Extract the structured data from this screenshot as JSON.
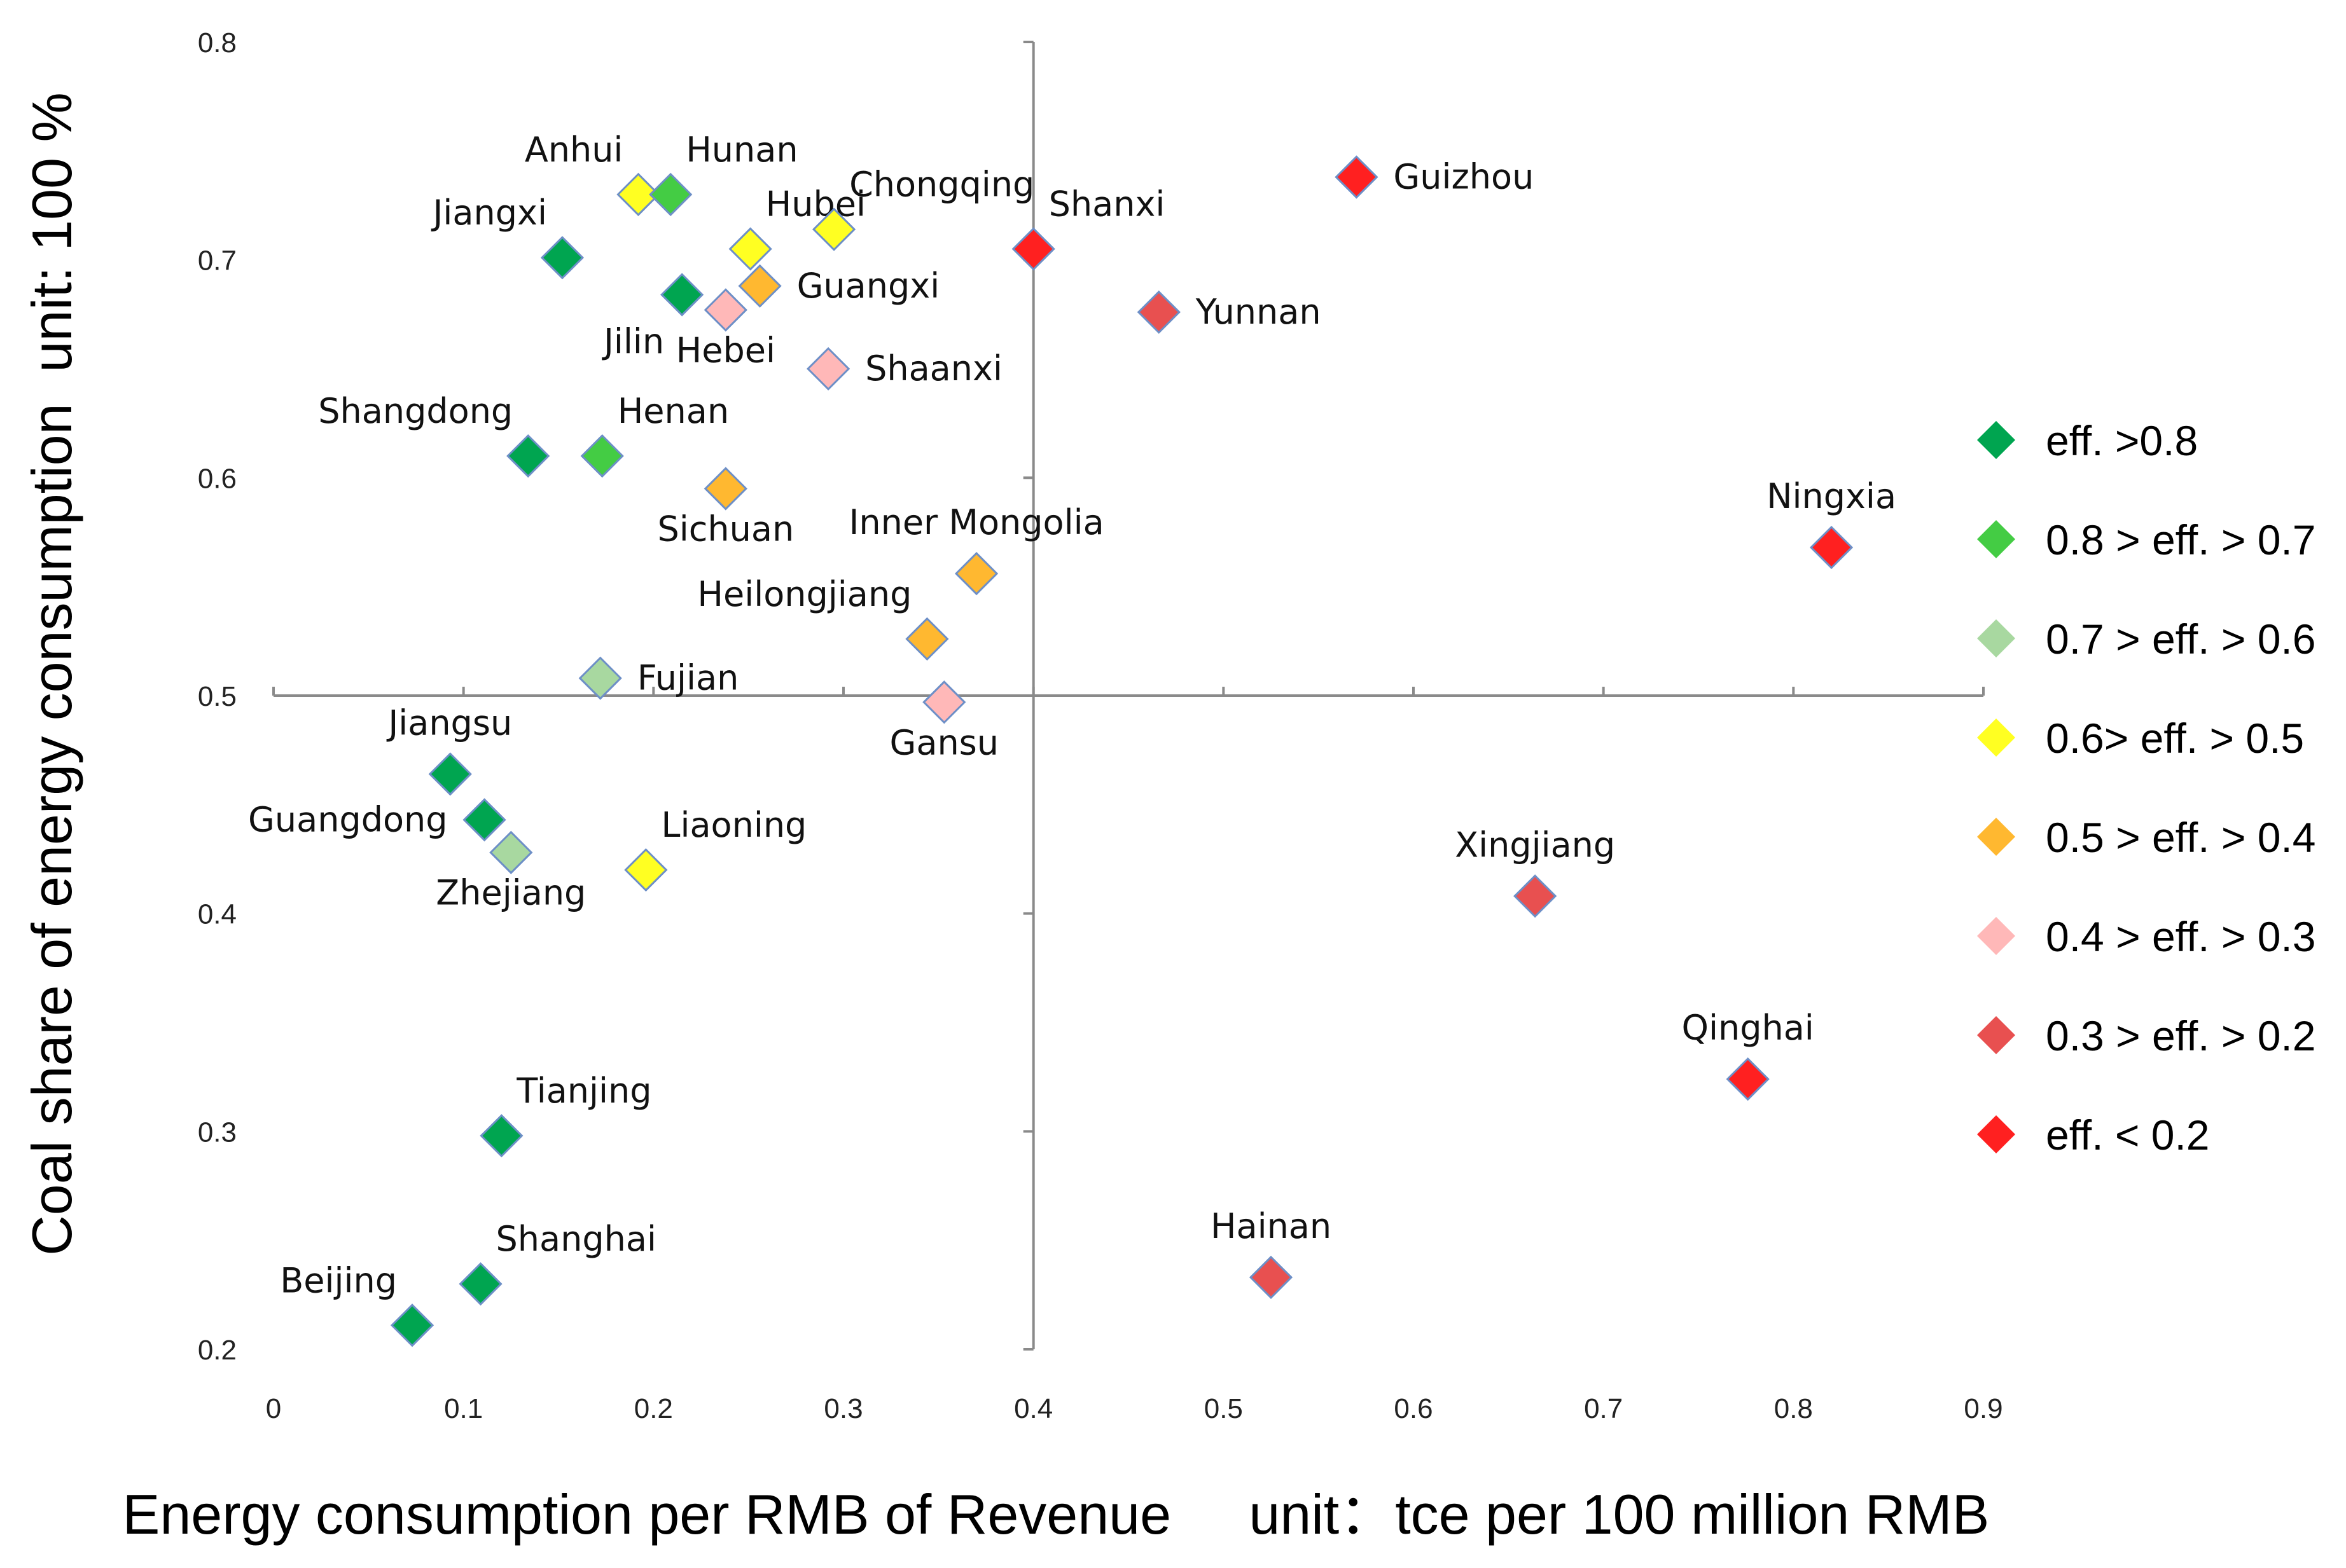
{
  "chart_data": {
    "type": "scatter",
    "xlabel": "Energy consumption per RMB of Revenue     unit：tce per 100 million RMB",
    "ylabel": "Coal share of energy consumption  unit: 100 %",
    "xlim": [
      0,
      0.9
    ],
    "ylim": [
      0.2,
      0.8
    ],
    "quadrant_center": {
      "x": 0.4,
      "y": 0.5
    },
    "x_ticks": [
      "0",
      "0.1",
      "0.2",
      "0.3",
      "0.4",
      "0.5",
      "0.6",
      "0.7",
      "0.8",
      "0.9"
    ],
    "y_ticks": [
      "0.2",
      "0.3",
      "0.4",
      "0.5",
      "0.6",
      "0.7",
      "0.8"
    ],
    "categories": [
      {
        "id": "c1",
        "label": "eff. >0.8",
        "color": "#00a550"
      },
      {
        "id": "c2",
        "label": "0.8 > eff. > 0.7",
        "color": "#44cc44"
      },
      {
        "id": "c3",
        "label": "0.7 > eff. > 0.6",
        "color": "#a8d8a0"
      },
      {
        "id": "c4",
        "label": "0.6> eff. > 0.5",
        "color": "#ffff22"
      },
      {
        "id": "c5",
        "label": "0.5 > eff. > 0.4",
        "color": "#ffb830"
      },
      {
        "id": "c6",
        "label": "0.4 > eff. > 0.3",
        "color": "#ffb8b8"
      },
      {
        "id": "c7",
        "label": "0.3 > eff. > 0.2",
        "color": "#e85050"
      },
      {
        "id": "c8",
        "label": "eff. < 0.2",
        "color": "#ff2020"
      }
    ],
    "points": [
      {
        "name": "Anhui",
        "x": 0.192,
        "y": 0.73,
        "cat": "c4",
        "lp": "above-left"
      },
      {
        "name": "Hunan",
        "x": 0.209,
        "y": 0.73,
        "cat": "c2",
        "lp": "above-right"
      },
      {
        "name": "Jiangxi",
        "x": 0.152,
        "y": 0.701,
        "cat": "c1",
        "lp": "above-left"
      },
      {
        "name": "Hubei",
        "x": 0.251,
        "y": 0.705,
        "cat": "c4",
        "lp": "above-right"
      },
      {
        "name": "Chongqing",
        "x": 0.295,
        "y": 0.714,
        "cat": "c4",
        "lp": "above-right"
      },
      {
        "name": "Shanxi",
        "x": 0.4,
        "y": 0.705,
        "cat": "c8",
        "lp": "above-right"
      },
      {
        "name": "Guizhou",
        "x": 0.57,
        "y": 0.738,
        "cat": "c8",
        "lp": "right"
      },
      {
        "name": "Jilin",
        "x": 0.215,
        "y": 0.684,
        "cat": "c1",
        "lp": "below-left"
      },
      {
        "name": "Guangxi",
        "x": 0.256,
        "y": 0.688,
        "cat": "c5",
        "lp": "right"
      },
      {
        "name": "Hebei",
        "x": 0.238,
        "y": 0.677,
        "cat": "c6",
        "lp": "below"
      },
      {
        "name": "Yunnan",
        "x": 0.466,
        "y": 0.676,
        "cat": "c7",
        "lp": "right"
      },
      {
        "name": "Shaanxi",
        "x": 0.292,
        "y": 0.65,
        "cat": "c6",
        "lp": "right"
      },
      {
        "name": "Shangdong",
        "x": 0.134,
        "y": 0.61,
        "cat": "c1",
        "lp": "above-left"
      },
      {
        "name": "Henan",
        "x": 0.173,
        "y": 0.61,
        "cat": "c2",
        "lp": "above-right"
      },
      {
        "name": "Sichuan",
        "x": 0.238,
        "y": 0.595,
        "cat": "c5",
        "lp": "below"
      },
      {
        "name": "Ningxia",
        "x": 0.82,
        "y": 0.568,
        "cat": "c8",
        "lp": "above"
      },
      {
        "name": "Inner Mongolia",
        "x": 0.37,
        "y": 0.556,
        "cat": "c5",
        "lp": "above"
      },
      {
        "name": "Heilongjiang",
        "x": 0.344,
        "y": 0.526,
        "cat": "c5",
        "lp": "above-left"
      },
      {
        "name": "Fujian",
        "x": 0.172,
        "y": 0.508,
        "cat": "c3",
        "lp": "right"
      },
      {
        "name": "Gansu",
        "x": 0.353,
        "y": 0.497,
        "cat": "c6",
        "lp": "below"
      },
      {
        "name": "Jiangsu",
        "x": 0.093,
        "y": 0.464,
        "cat": "c1",
        "lp": "above"
      },
      {
        "name": "Guangdong",
        "x": 0.111,
        "y": 0.443,
        "cat": "c1",
        "lp": "left"
      },
      {
        "name": "Zhejiang",
        "x": 0.125,
        "y": 0.428,
        "cat": "c3",
        "lp": "below"
      },
      {
        "name": "Liaoning",
        "x": 0.196,
        "y": 0.42,
        "cat": "c4",
        "lp": "above-right"
      },
      {
        "name": "Xingjiang",
        "x": 0.664,
        "y": 0.408,
        "cat": "c7",
        "lp": "above"
      },
      {
        "name": "Qinghai",
        "x": 0.776,
        "y": 0.324,
        "cat": "c8",
        "lp": "above"
      },
      {
        "name": "Tianjing",
        "x": 0.12,
        "y": 0.298,
        "cat": "c1",
        "lp": "above-right"
      },
      {
        "name": "Hainan",
        "x": 0.525,
        "y": 0.233,
        "cat": "c7",
        "lp": "above"
      },
      {
        "name": "Shanghai",
        "x": 0.109,
        "y": 0.23,
        "cat": "c1",
        "lp": "above-right"
      },
      {
        "name": "Beijing",
        "x": 0.073,
        "y": 0.211,
        "cat": "c1",
        "lp": "above-left"
      }
    ]
  }
}
